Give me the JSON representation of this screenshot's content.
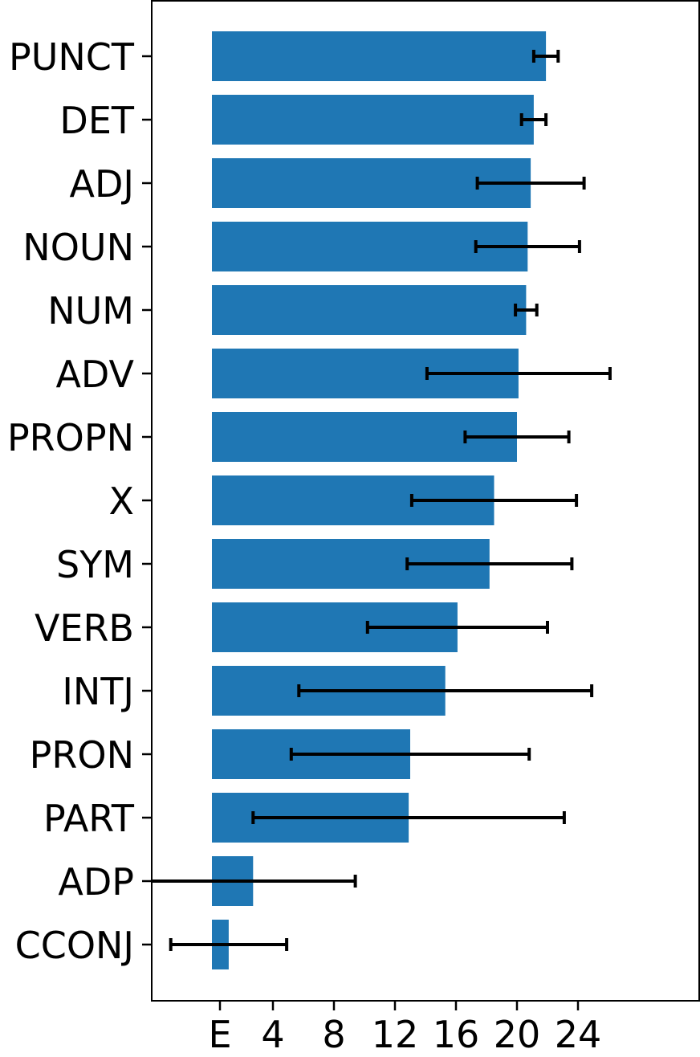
{
  "chart_data": {
    "type": "bar",
    "orientation": "horizontal",
    "categories": [
      "PUNCT",
      "DET",
      "ADJ",
      "NOUN",
      "NUM",
      "ADV",
      "PROPN",
      "X",
      "SYM",
      "VERB",
      "INTJ",
      "PRON",
      "PART",
      "ADP",
      "CCONJ"
    ],
    "values": [
      21.9,
      21.1,
      20.9,
      20.7,
      20.6,
      20.1,
      20.0,
      18.5,
      18.2,
      16.1,
      15.3,
      13.0,
      12.9,
      2.7,
      1.1
    ],
    "error": [
      0.8,
      0.8,
      3.5,
      3.4,
      0.7,
      6.0,
      3.4,
      5.4,
      5.4,
      5.9,
      9.6,
      7.8,
      10.2,
      6.7,
      3.8
    ],
    "x_ticks": [
      0,
      4,
      8,
      12,
      16,
      20,
      24
    ],
    "x_tick_labels": [
      "E",
      "4",
      "8",
      "12",
      "16",
      "20",
      "24"
    ],
    "xlim": [
      -4.5,
      36.5
    ],
    "color": "#1f77b4",
    "error_color": "#000000",
    "title": "",
    "xlabel": "",
    "ylabel": "",
    "grid": false,
    "legend": "none"
  }
}
